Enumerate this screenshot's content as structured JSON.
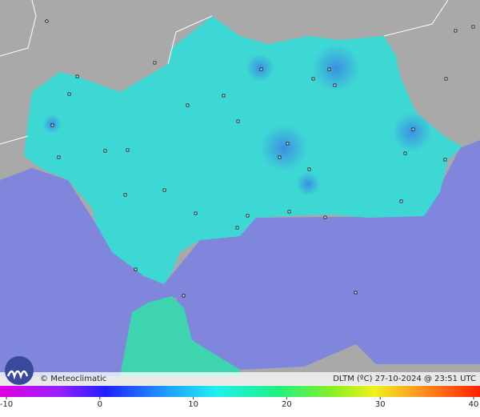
{
  "brand": "Meteoclimatic",
  "caption": "DLTM (ºC)  27-10-2024 @ 23:51 UTC",
  "colorbar": {
    "min": -10,
    "max": 40,
    "ticks": [
      -10,
      0,
      10,
      20,
      30,
      40
    ]
  }
}
